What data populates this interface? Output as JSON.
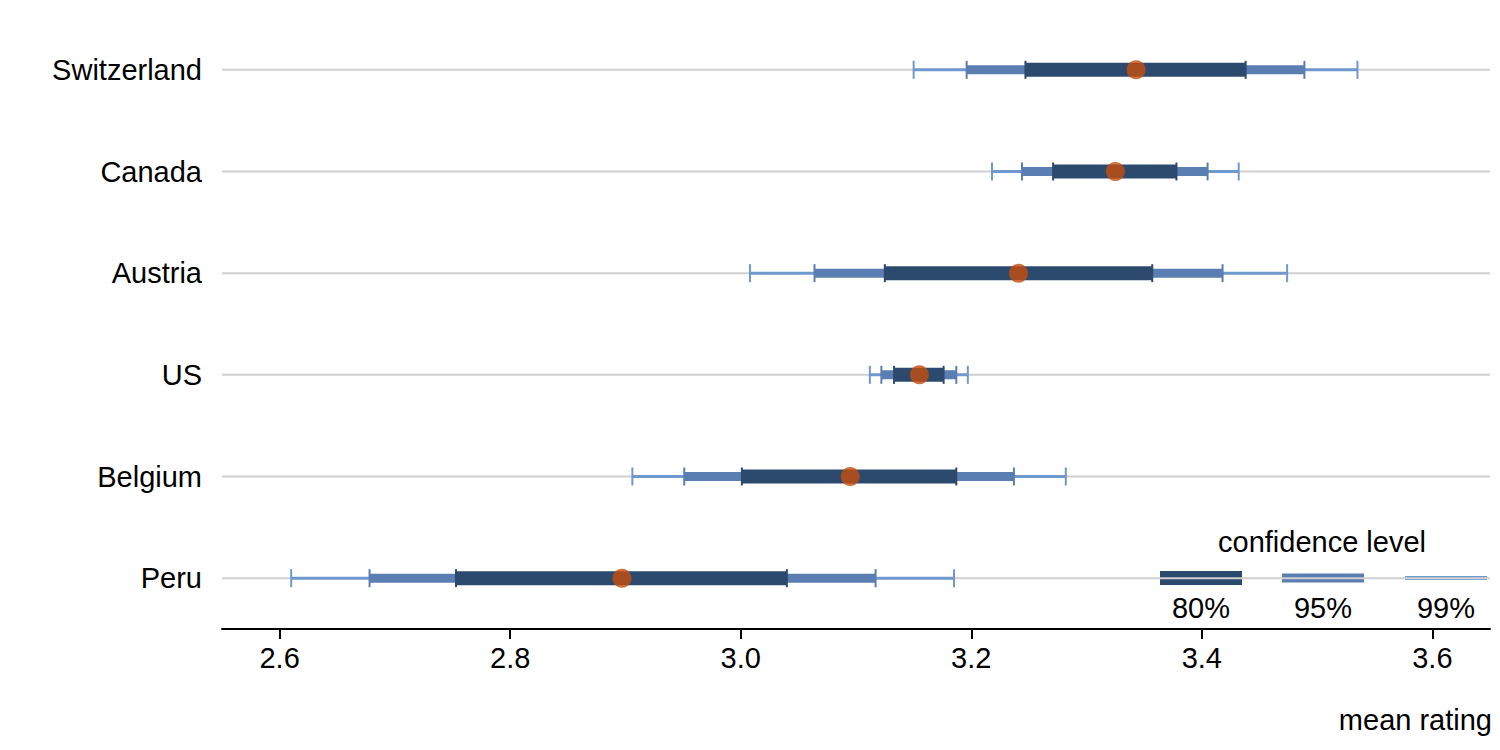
{
  "chart_data": {
    "type": "interval",
    "orientation": "horizontal",
    "x_label": "mean rating",
    "categories": [
      "Switzerland",
      "Canada",
      "Austria",
      "US",
      "Belgium",
      "Peru"
    ],
    "values": [
      3.343,
      3.325,
      3.241,
      3.155,
      3.095,
      2.897
    ],
    "color": "#c84d0c",
    "marker": "circle",
    "legend_title": "confidence level",
    "legend": "lower right",
    "intervals": [
      {
        "name": "80%",
        "color": "#2c4a6e",
        "lower": [
          3.247,
          3.271,
          3.125,
          3.133,
          3.001,
          2.753
        ],
        "upper": [
          3.438,
          3.378,
          3.357,
          3.176,
          3.187,
          3.04
        ]
      },
      {
        "name": "95%",
        "color": "#5a7eb2",
        "lower": [
          3.196,
          3.244,
          3.064,
          3.122,
          2.951,
          2.678
        ],
        "upper": [
          3.489,
          3.405,
          3.418,
          3.187,
          3.237,
          3.117
        ]
      },
      {
        "name": "99%",
        "color": "#6f98cf",
        "lower": [
          3.15,
          3.218,
          3.008,
          3.112,
          2.906,
          2.61
        ],
        "upper": [
          3.535,
          3.432,
          3.474,
          3.197,
          3.282,
          3.185
        ]
      }
    ],
    "xlim": [
      2.55,
      3.65
    ],
    "xticks": [
      2.6,
      2.8,
      {
        "value": 3,
        "label": "3.0"
      },
      3.2,
      3.4,
      3.6
    ],
    "grid": true
  }
}
